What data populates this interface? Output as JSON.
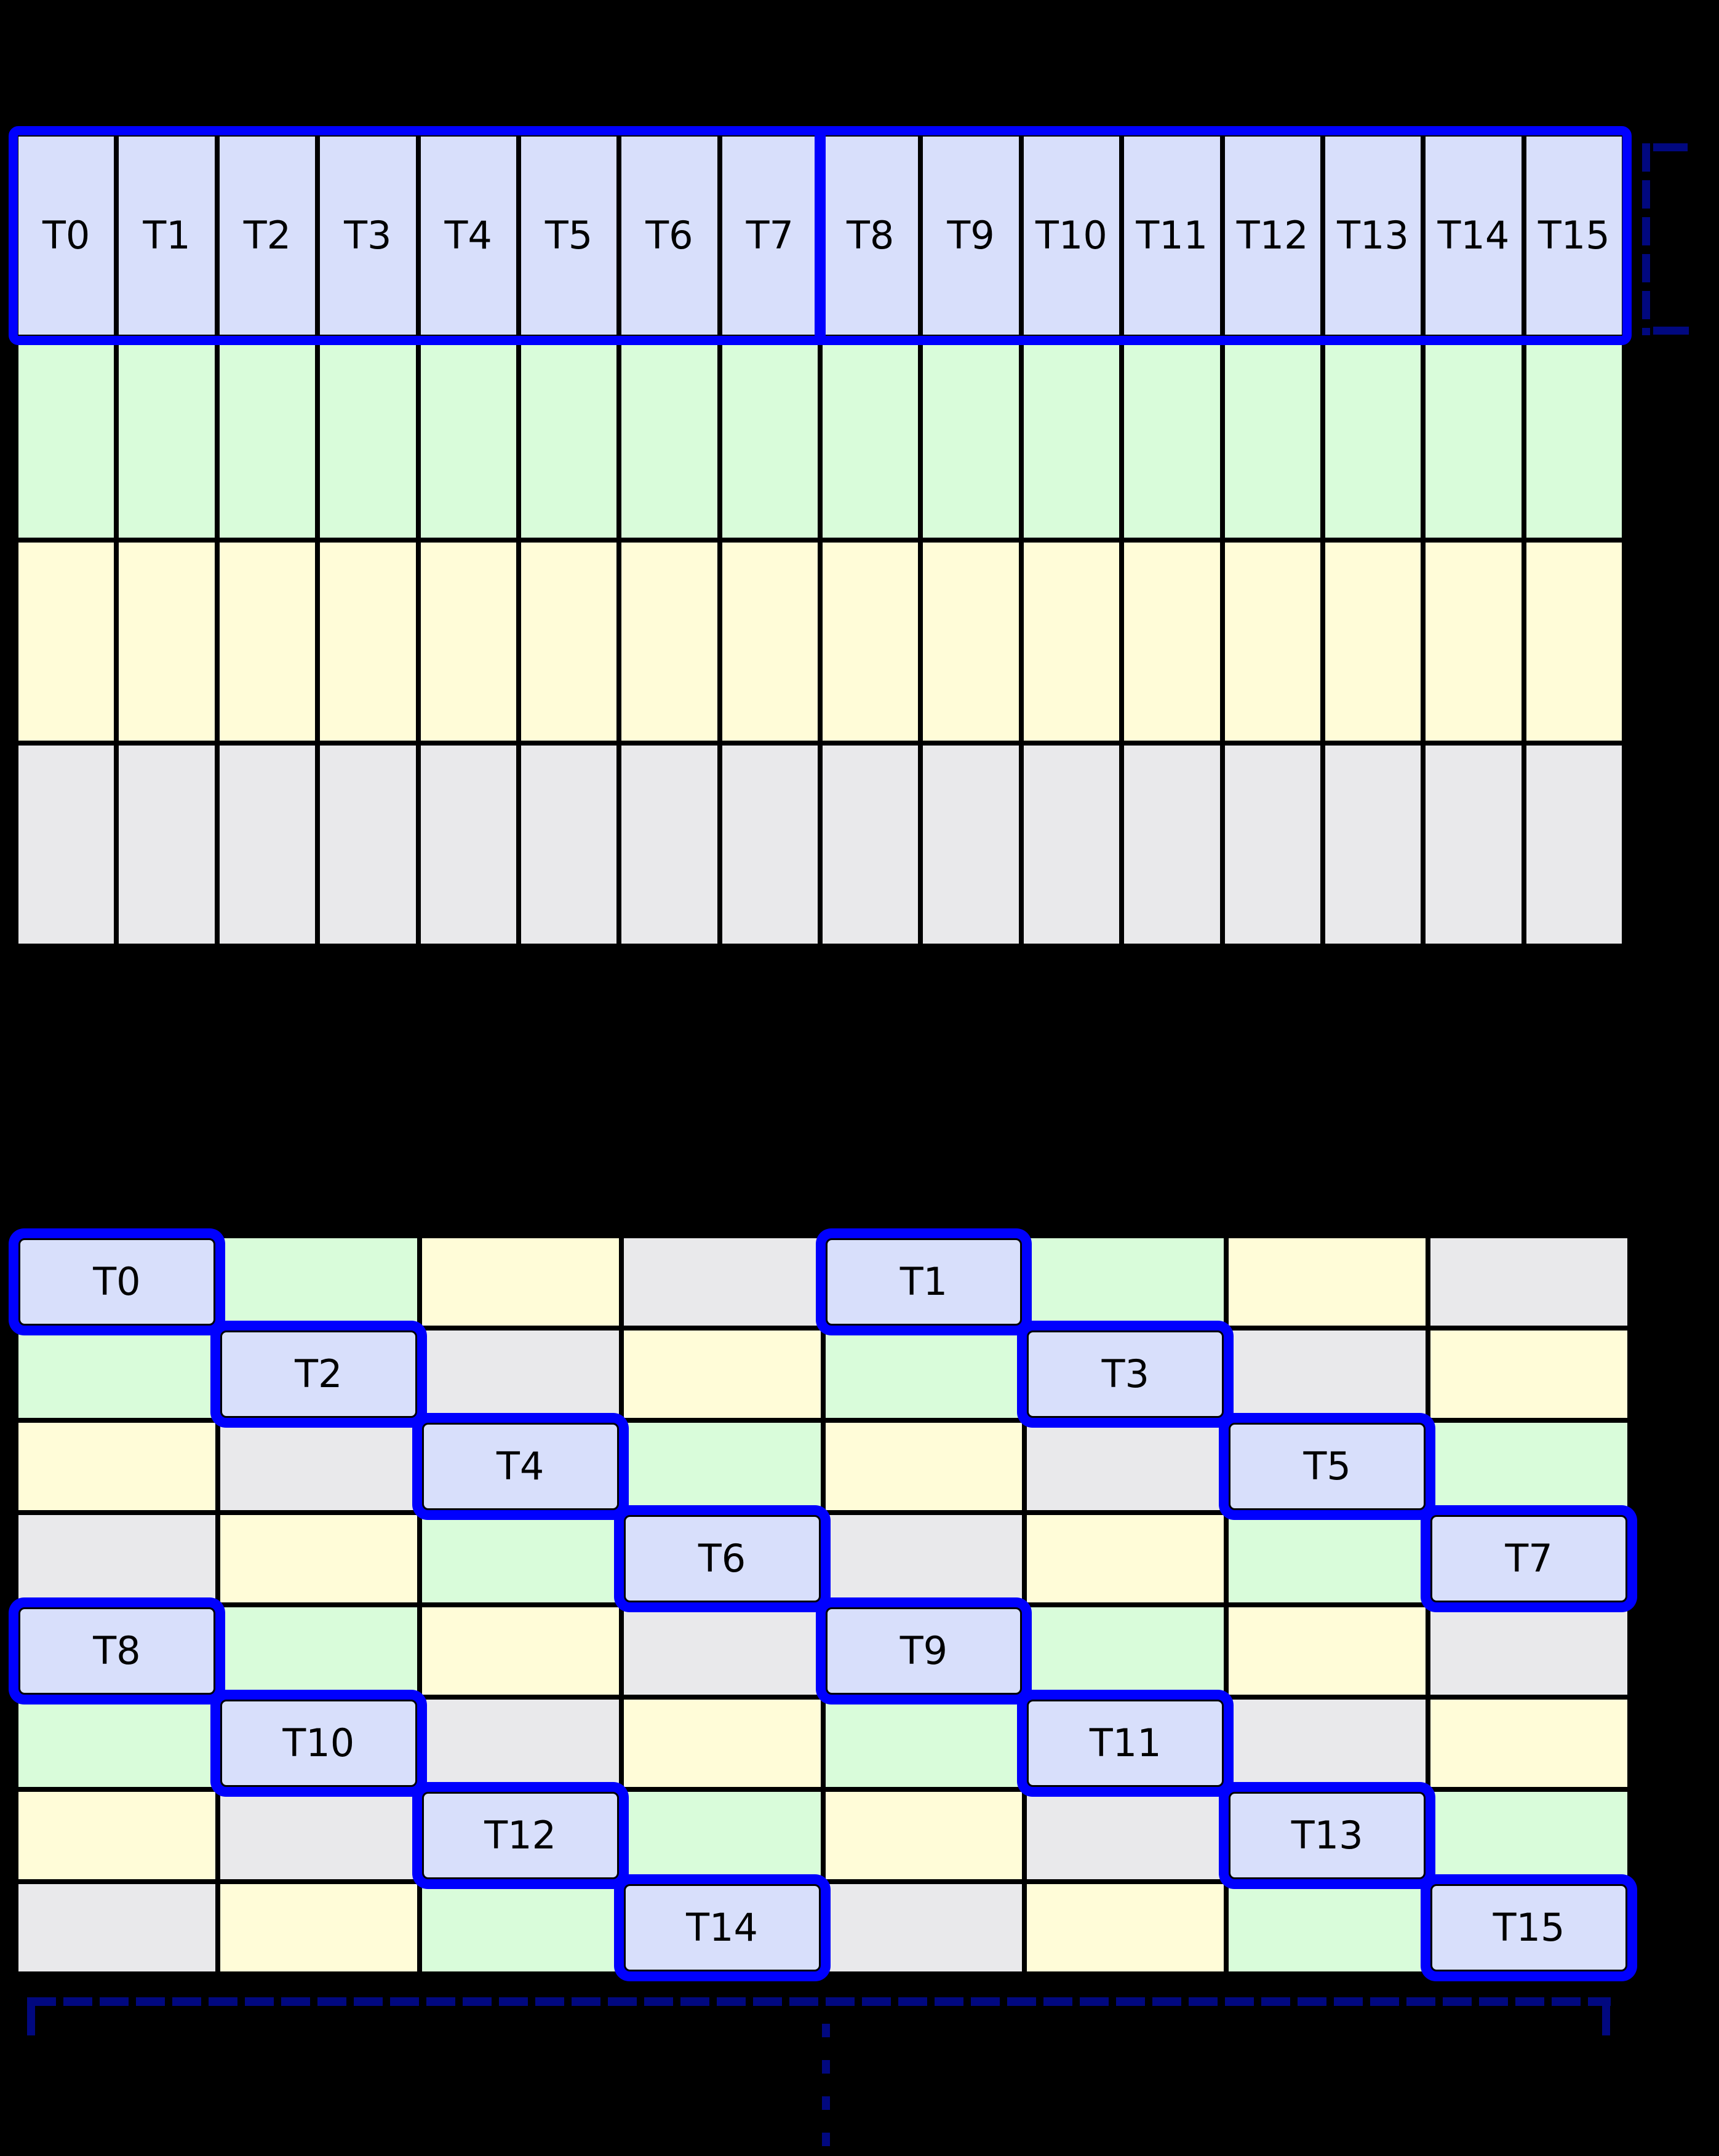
{
  "colors": {
    "background": "#000000",
    "grid_line": "#000000",
    "cell_blue": "#d8dffb",
    "cell_green": "#d9fcda",
    "cell_yellow": "#fffcd8",
    "cell_gray": "#e9e9eb",
    "highlight": "#0000fe",
    "dashed_navy": "#01087f"
  },
  "top_grid": {
    "columns": 16,
    "rows": 4,
    "thread_labels": [
      "T0",
      "T1",
      "T2",
      "T3",
      "T4",
      "T5",
      "T6",
      "T7",
      "T8",
      "T9",
      "T10",
      "T11",
      "T12",
      "T13",
      "T14",
      "T15"
    ],
    "memory_row_colors": [
      "green",
      "yellow",
      "gray"
    ],
    "half_divider_after_column": 8
  },
  "bottom_grid": {
    "columns": 8,
    "rows": [
      {
        "colors": [
          "blue",
          "green",
          "yellow",
          "gray",
          "blue",
          "green",
          "yellow",
          "gray"
        ],
        "labels": {
          "0": "T0",
          "4": "T1"
        }
      },
      {
        "colors": [
          "green",
          "blue",
          "gray",
          "yellow",
          "green",
          "blue",
          "gray",
          "yellow"
        ],
        "labels": {
          "1": "T2",
          "5": "T3"
        }
      },
      {
        "colors": [
          "yellow",
          "gray",
          "blue",
          "green",
          "yellow",
          "gray",
          "blue",
          "green"
        ],
        "labels": {
          "2": "T4",
          "6": "T5"
        }
      },
      {
        "colors": [
          "gray",
          "yellow",
          "green",
          "blue",
          "gray",
          "yellow",
          "green",
          "blue"
        ],
        "labels": {
          "3": "T6",
          "7": "T7"
        }
      },
      {
        "colors": [
          "blue",
          "green",
          "yellow",
          "gray",
          "blue",
          "green",
          "yellow",
          "gray"
        ],
        "labels": {
          "0": "T8",
          "4": "T9"
        }
      },
      {
        "colors": [
          "green",
          "blue",
          "gray",
          "yellow",
          "green",
          "blue",
          "gray",
          "yellow"
        ],
        "labels": {
          "1": "T10",
          "5": "T11"
        }
      },
      {
        "colors": [
          "yellow",
          "gray",
          "blue",
          "green",
          "yellow",
          "gray",
          "blue",
          "green"
        ],
        "labels": {
          "2": "T12",
          "6": "T13"
        }
      },
      {
        "colors": [
          "gray",
          "yellow",
          "green",
          "blue",
          "gray",
          "yellow",
          "green",
          "blue"
        ],
        "labels": {
          "3": "T14",
          "7": "T15"
        }
      }
    ]
  }
}
